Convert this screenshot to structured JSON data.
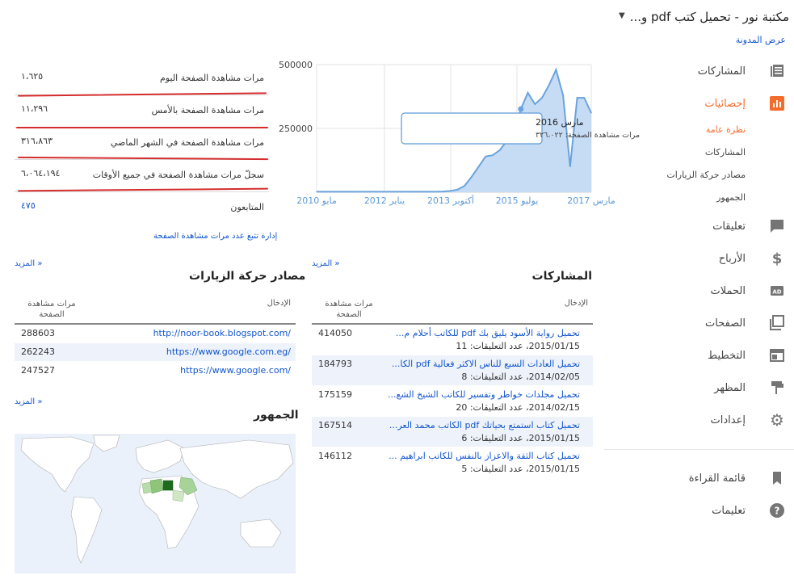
{
  "blog": {
    "title": "مكتبة نور - تحميل كتب pdf و...",
    "view_blog": "عرض المدونة"
  },
  "sidebar": {
    "items": [
      {
        "label": "المشاركات",
        "icon": "posts-icon"
      },
      {
        "label": "إحصائيات",
        "icon": "stats-icon",
        "active": true
      },
      {
        "label": "تعليقات",
        "icon": "comments-icon"
      },
      {
        "label": "الأرباح",
        "icon": "dollar-icon"
      },
      {
        "label": "الحملات",
        "icon": "ad-icon"
      },
      {
        "label": "الصفحات",
        "icon": "pages-icon"
      },
      {
        "label": "التخطيط",
        "icon": "layout-icon"
      },
      {
        "label": "المظهر",
        "icon": "paint-roller-icon"
      },
      {
        "label": "إعدادات",
        "icon": "gear-icon"
      },
      {
        "label": "قائمة القراءة",
        "icon": "bookmark-icon"
      },
      {
        "label": "تعليمات",
        "icon": "help-icon"
      }
    ],
    "sub_items": [
      "نظرة عامة",
      "المشاركات",
      "مصادر حركة الزيارات",
      "الجمهور"
    ]
  },
  "stats": {
    "rows": [
      {
        "label": "مرات مشاهدة الصفحة اليوم",
        "value": "١،٦٢٥"
      },
      {
        "label": "مرات مشاهدة الصفحة بالأمس",
        "value": "١١،٢٩٦"
      },
      {
        "label": "مرات مشاهدة الصفحة في الشهر الماضي",
        "value": "٣١٦،٨٦٣"
      },
      {
        "label": "سجلّ مرات مشاهدة الصفحة في جميع الأوقات",
        "value": "٦،٠٦٤،١٩٤"
      },
      {
        "label": "المتابعون",
        "value": "٤٧٥"
      }
    ],
    "manage_link": "إدارة تتبع عدد مرات مشاهدة الصفحة"
  },
  "chart_data": {
    "type": "area",
    "x_tick_labels": [
      "مايو 2010",
      "يناير 2012",
      "أكتوبر 2013",
      "يوليو 2015",
      "مارس 2017"
    ],
    "y_tick_labels": [
      "500000",
      "250000"
    ],
    "ylim": [
      0,
      500000
    ],
    "color": "#6aa3dd",
    "fill": "#c6dcf5",
    "values": [
      2000,
      2000,
      2000,
      2000,
      2000,
      2000,
      2000,
      2000,
      2000,
      2000,
      2000,
      2000,
      2000,
      2000,
      2000,
      2000,
      2000,
      2000,
      3000,
      5000,
      10000,
      25000,
      60000,
      100000,
      140000,
      145000,
      165000,
      200000,
      230000,
      326022,
      390000,
      345000,
      370000,
      420000,
      480000,
      380000,
      100000,
      370000,
      370000,
      310000
    ],
    "tooltip": {
      "date": "مارس 2016",
      "text": "مرات مشاهدة الصفحة: ٣٢٦،٠٢٢"
    }
  },
  "posts_section": {
    "title": "المشاركات",
    "more": "المزيد »",
    "col_entry": "الإدخال",
    "col_views": "مرات مشاهدة الصفحة",
    "rows": [
      {
        "title": "تحميل رواية الأسود يليق بك pdf للكاتب أحلام م...",
        "date": "2015/01/15",
        "comments_label": "عدد التعليقات",
        "comments": "11",
        "views": "414050"
      },
      {
        "title": "تحميل العادات السبع للناس الاكثر فعالية pdf الكا...",
        "date": "2014/02/05",
        "comments_label": "عدد التعليقات",
        "comments": "8",
        "views": "184793"
      },
      {
        "title": "تحميل مجلدات خواطر وتفسير للكاتب الشيخ الشع...",
        "date": "2014/02/15",
        "comments_label": "عدد التعليقات",
        "comments": "20",
        "views": "175159"
      },
      {
        "title": "تحميل كتاب استمتع بحياتك pdf الكاتب محمد العر...",
        "date": "2015/01/15",
        "comments_label": "عدد التعليقات",
        "comments": "6",
        "views": "167514"
      },
      {
        "title": "تحميل كتاب الثقة والاعزاز بالنفس للكاتب ابراهيم ...",
        "date": "2015/01/15",
        "comments_label": "عدد التعليقات",
        "comments": "5",
        "views": "146112"
      }
    ]
  },
  "traffic_section": {
    "title": "مصادر حركة الزيارات",
    "more": "المزيد »",
    "col_entry": "الإدخال",
    "col_views": "مرات مشاهدة الصفحة",
    "rows": [
      {
        "url": "http://noor-book.blogspot.com/",
        "views": "288603"
      },
      {
        "url": "https://www.google.com.eg/",
        "views": "262243"
      },
      {
        "url": "https://www.google.com/",
        "views": "247527"
      }
    ]
  },
  "audience_section": {
    "title": "الجمهور",
    "more": "المزيد »"
  }
}
